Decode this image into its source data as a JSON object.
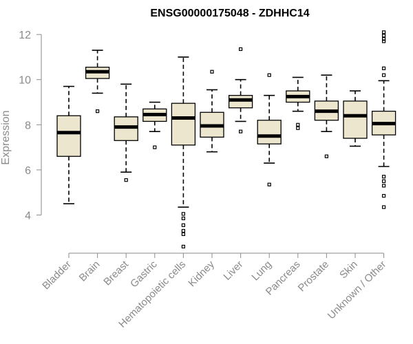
{
  "chart_data": {
    "type": "boxplot",
    "title": "ENSG00000175048 - ZDHHC14",
    "xlabel": "",
    "ylabel": "Expression",
    "ylim": [
      2.4,
      12.4
    ],
    "yticks": [
      4,
      6,
      8,
      10,
      12
    ],
    "box_color": "#ede6cf",
    "categories": [
      {
        "name": "Bladder",
        "min": 4.5,
        "q1": 6.6,
        "median": 7.65,
        "q3": 8.4,
        "max": 9.7,
        "outliers": []
      },
      {
        "name": "Brain",
        "min": 9.4,
        "q1": 10.05,
        "median": 10.35,
        "q3": 10.55,
        "max": 11.3,
        "outliers": [
          8.6
        ]
      },
      {
        "name": "Breast",
        "min": 5.9,
        "q1": 7.3,
        "median": 7.9,
        "q3": 8.35,
        "max": 9.8,
        "outliers": [
          5.55
        ]
      },
      {
        "name": "Gastric",
        "min": 7.7,
        "q1": 8.15,
        "median": 8.45,
        "q3": 8.7,
        "max": 9.0,
        "outliers": [
          7.0
        ]
      },
      {
        "name": "Hematopoietic cells",
        "min": 4.35,
        "q1": 7.1,
        "median": 8.3,
        "q3": 8.95,
        "max": 11.0,
        "outliers": [
          4.05,
          3.85,
          3.55,
          3.3,
          3.15,
          2.6
        ]
      },
      {
        "name": "Kidney",
        "min": 6.8,
        "q1": 7.45,
        "median": 7.95,
        "q3": 8.55,
        "max": 9.55,
        "outliers": [
          10.35
        ]
      },
      {
        "name": "Liver",
        "min": 8.15,
        "q1": 8.75,
        "median": 9.1,
        "q3": 9.3,
        "max": 10.0,
        "outliers": [
          11.35,
          7.7
        ]
      },
      {
        "name": "Lung",
        "min": 6.3,
        "q1": 7.15,
        "median": 7.5,
        "q3": 8.2,
        "max": 9.3,
        "outliers": [
          10.2,
          5.35
        ]
      },
      {
        "name": "Pancreas",
        "min": 8.6,
        "q1": 9.0,
        "median": 9.25,
        "q3": 9.5,
        "max": 10.1,
        "outliers": [
          8.0,
          7.85
        ]
      },
      {
        "name": "Prostate",
        "min": 7.7,
        "q1": 8.2,
        "median": 8.6,
        "q3": 9.05,
        "max": 10.2,
        "outliers": [
          6.6
        ]
      },
      {
        "name": "Skin",
        "min": 7.05,
        "q1": 7.4,
        "median": 8.4,
        "q3": 9.05,
        "max": 9.5,
        "outliers": []
      },
      {
        "name": "Unknown / Other",
        "min": 6.15,
        "q1": 7.55,
        "median": 8.05,
        "q3": 8.6,
        "max": 9.95,
        "outliers": [
          12.1,
          11.95,
          11.8,
          11.7,
          10.5,
          10.2,
          5.7,
          5.5,
          5.3,
          4.85,
          4.35
        ]
      }
    ]
  }
}
